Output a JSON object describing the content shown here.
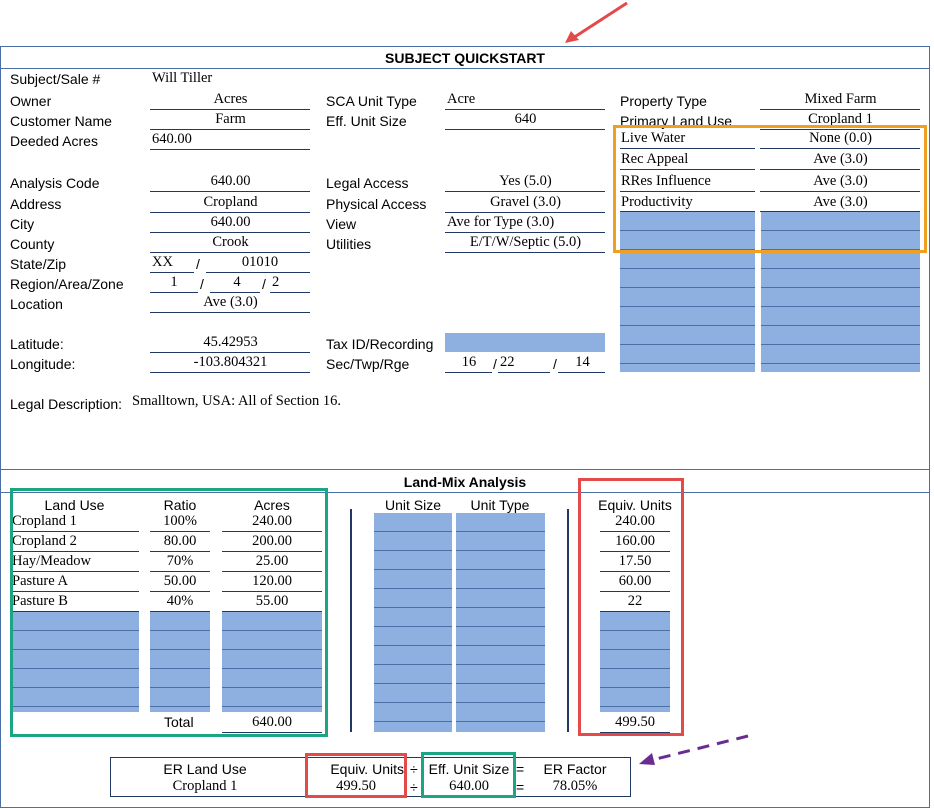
{
  "title": "SUBJECT QUICKSTART",
  "subject": {
    "subject_label": "Subject/Sale #",
    "subject_value": "Will Tiller",
    "owner_label": "Owner",
    "owner_value": "Acres",
    "customer_label": "Customer Name",
    "customer_value": "Farm",
    "deeded_label": "Deeded Acres",
    "deeded_value": "640.00",
    "analysis_label": "Analysis Code",
    "analysis_value": "640.00",
    "address_label": "Address",
    "address_value": "Cropland",
    "city_label": "City",
    "city_value": "640.00",
    "county_label": "County",
    "county_value": "Crook",
    "statezip_label": "State/Zip",
    "state_value": "XX",
    "zip_value": "01010",
    "region_label": "Region/Area/Zone",
    "region_value": "1",
    "area_value": "4",
    "zone_value": "2",
    "location_label": "Location",
    "location_value": "Ave (3.0)",
    "latitude_label": "Latitude:",
    "latitude_value": "45.42953",
    "longitude_label": "Longitude:",
    "longitude_value": "-103.804321",
    "legal_desc_label": "Legal Description:",
    "legal_desc_value": "Smalltown, USA:  All of Section 16."
  },
  "middle": {
    "sca_label": "SCA Unit Type",
    "sca_value": "Acre",
    "eff_label": "Eff. Unit Size",
    "eff_value": "640",
    "legal_access_label": "Legal Access",
    "legal_access_value": "Yes (5.0)",
    "physical_access_label": "Physical Access",
    "physical_access_value": "Gravel (3.0)",
    "view_label": "View",
    "view_value": "Ave for Type (3.0)",
    "utilities_label": "Utilities",
    "utilities_value": "E/T/W/Septic (5.0)",
    "taxid_label": "Tax ID/Recording",
    "sectwp_label": "Sec/Twp/Rge",
    "sec_value": "16",
    "twp_value": "22",
    "rge_value": "14"
  },
  "right": {
    "property_type_label": "Property Type",
    "property_type_value": "Mixed Farm",
    "primary_use_label": "Primary Land Use",
    "primary_use_value": "Cropland 1",
    "attributes": [
      {
        "label": "Live Water",
        "value": "None (0.0)"
      },
      {
        "label": "Rec Appeal",
        "value": "Ave (3.0)"
      },
      {
        "label": "RRes Influence",
        "value": "Ave (3.0)"
      },
      {
        "label": "Productivity",
        "value": "Ave (3.0)"
      }
    ]
  },
  "landmix": {
    "title": "Land-Mix Analysis",
    "headers": {
      "land_use": "Land Use",
      "ratio": "Ratio",
      "acres": "Acres",
      "unit_size": "Unit Size",
      "unit_type": "Unit Type",
      "equiv_units": "Equiv. Units"
    },
    "rows": [
      {
        "land_use": "Cropland 1",
        "ratio": "100%",
        "acres": "240.00",
        "equiv": "240.00"
      },
      {
        "land_use": "Cropland 2",
        "ratio": "80.00",
        "acres": "200.00",
        "equiv": "160.00"
      },
      {
        "land_use": "Hay/Meadow",
        "ratio": "70%",
        "acres": "25.00",
        "equiv": "17.50"
      },
      {
        "land_use": "Pasture A",
        "ratio": "50.00",
        "acres": "120.00",
        "equiv": "60.00"
      },
      {
        "land_use": "Pasture B",
        "ratio": "40%",
        "acres": "55.00",
        "equiv": "22"
      }
    ],
    "total_label": "Total",
    "total_acres": "640.00",
    "total_equiv": "499.50"
  },
  "er": {
    "land_use_label": "ER Land Use",
    "land_use_value": "Cropland 1",
    "equiv_label": "Equiv. Units",
    "equiv_value": "499.50",
    "eff_label": "Eff. Unit Size",
    "eff_value": "640.00",
    "factor_label": "ER Factor",
    "factor_value": "78.05%",
    "div_symbol": "÷",
    "eq_symbol": "="
  },
  "colors": {
    "input_blue": "#8eb0e0",
    "line_blue": "#4a6fa5",
    "arrow_red": "#e34a4a",
    "box_orange": "#f0a020",
    "box_green": "#1aa583",
    "box_red": "#e34a4a",
    "arrow_purple": "#6a2c91"
  }
}
